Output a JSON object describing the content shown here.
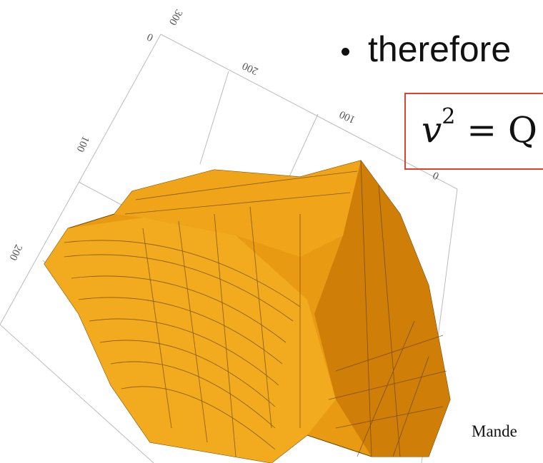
{
  "slide": {
    "bullet_text": "therefore",
    "equation": {
      "base": "v",
      "exponent": "2",
      "rest": "= Q"
    },
    "credit": "Mande",
    "plot_ticks": {
      "top_axis": [
        "0",
        "300",
        "200",
        "100",
        "0"
      ],
      "left_axis": [
        "100",
        "200"
      ]
    }
  }
}
